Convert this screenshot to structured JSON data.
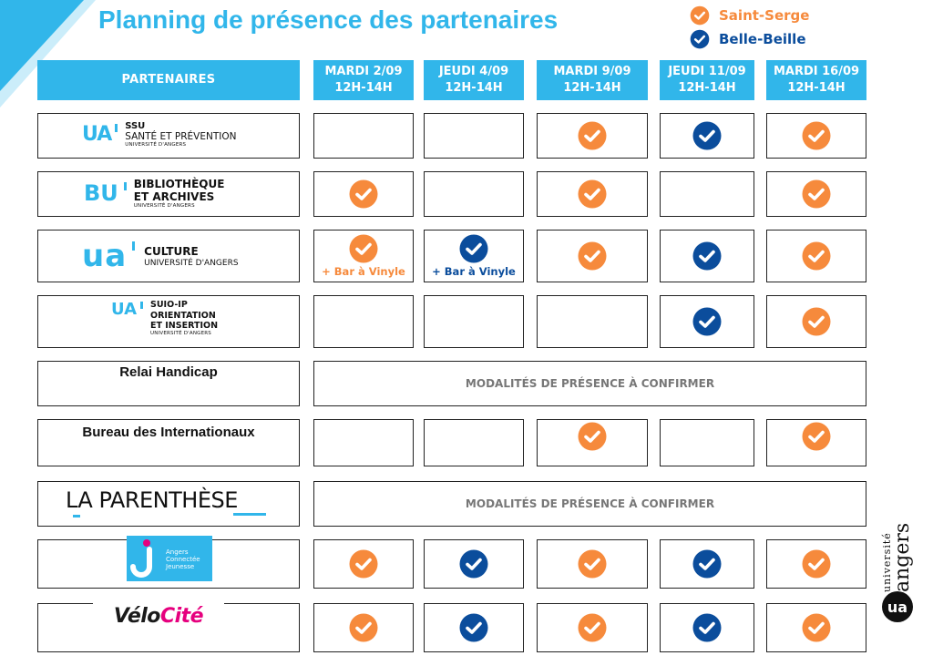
{
  "title": "Planning de présence des partenaires",
  "legend": [
    {
      "label": "Saint-Serge",
      "color": "#f68a3c"
    },
    {
      "label": "Belle-Beille",
      "color": "#0b4d9c"
    }
  ],
  "header": {
    "partners_label": "PARTENAIRES",
    "days": [
      {
        "day": "MARDI 2/09",
        "time": "12H-14H"
      },
      {
        "day": "JEUDI 4/09",
        "time": "12H-14H"
      },
      {
        "day": "MARDI 9/09",
        "time": "12H-14H"
      },
      {
        "day": "JEUDI 11/09",
        "time": "12H-14H"
      },
      {
        "day": "MARDI 16/09",
        "time": "12H-14H"
      }
    ]
  },
  "partners": [
    {
      "mark": "UA",
      "line1": "SSU",
      "line2": "SANTÉ ET PRÉVENTION",
      "line3": "UNIVERSITÉ D'ANGERS"
    },
    {
      "mark": "BU",
      "line1": "BIBLIOTHÈQUE",
      "line2": "ET ARCHIVES",
      "line3": "UNIVERSITÉ D'ANGERS"
    },
    {
      "mark": "ua",
      "line1": "CULTURE",
      "line2": "UNIVERSITÉ D'ANGERS"
    },
    {
      "mark": "UA",
      "line1": "SUIO-IP",
      "line2": "ORIENTATION",
      "line3": "ET INSERTION",
      "line4": "UNIVERSITÉ D'ANGERS"
    },
    {
      "name": "Relai Handicap"
    },
    {
      "name": "Bureau des Internationaux"
    },
    {
      "logo_text": "LA PARENTHÈSE"
    },
    {
      "line1": "Angers",
      "line2": "Connectée",
      "line3": "Jeunesse"
    },
    {
      "logo_text_1": "Vélo",
      "logo_text_2": "Cité"
    }
  ],
  "schedule": [
    [
      "",
      "",
      "orange",
      "blue",
      "orange"
    ],
    [
      "orange",
      "",
      "orange",
      "",
      "orange"
    ],
    [
      "orange",
      "blue",
      "orange",
      "blue",
      "orange"
    ],
    [
      "",
      "",
      "",
      "blue",
      "orange"
    ],
    "merged",
    [
      "",
      "",
      "orange",
      "",
      "orange"
    ],
    "merged",
    [
      "orange",
      "blue",
      "orange",
      "blue",
      "orange"
    ],
    [
      "orange",
      "blue",
      "orange",
      "blue",
      "orange"
    ]
  ],
  "notes": {
    "culture_mardi": "+ Bar à Vinyle",
    "culture_jeudi": "+ Bar à Vinyle"
  },
  "merged_text": "MODALITÉS DE PRÉSENCE À CONFIRMER",
  "brand": {
    "line1": "université",
    "line2": "angers"
  },
  "colors": {
    "accent": "#31b6ea",
    "orange": "#f68a3c",
    "blue": "#0b4d9c"
  },
  "icons": {
    "check": "check-circle-icon"
  }
}
